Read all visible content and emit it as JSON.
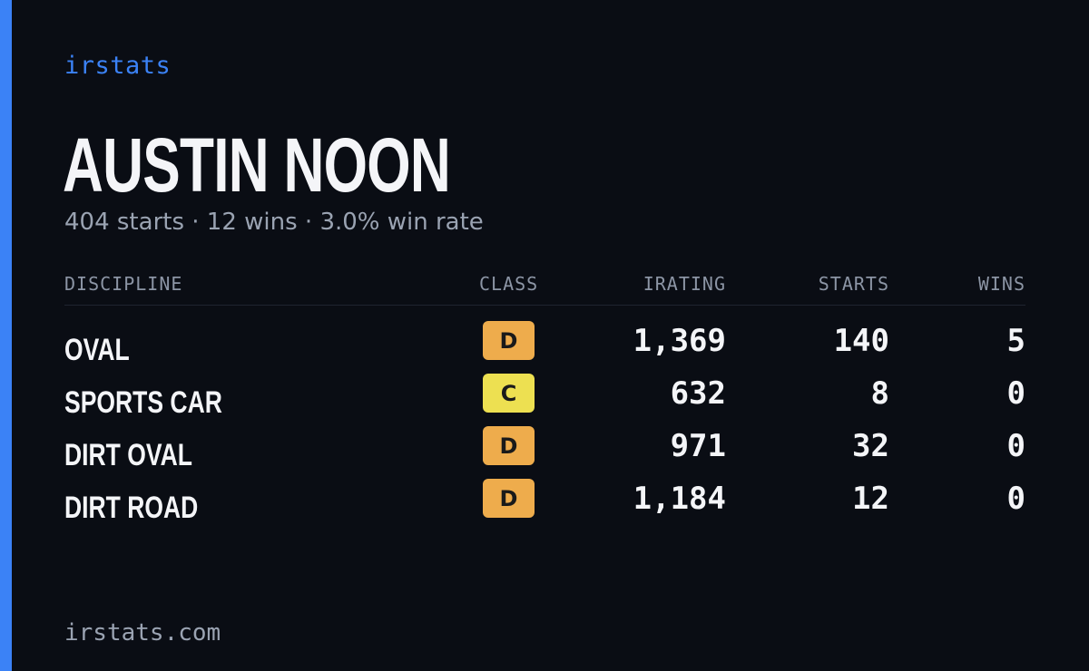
{
  "brand": "irstats",
  "driver_name": "AUSTIN NOON",
  "summary": "404 starts · 12 wins · 3.0% win rate",
  "table": {
    "headers": {
      "discipline": "DISCIPLINE",
      "class": "CLASS",
      "irating": "IRATING",
      "starts": "STARTS",
      "wins": "WINS"
    },
    "rows": [
      {
        "discipline": "OVAL",
        "class": "D",
        "class_color": "#eeac4c",
        "irating": "1,369",
        "starts": "140",
        "wins": "5"
      },
      {
        "discipline": "SPORTS CAR",
        "class": "C",
        "class_color": "#ede051",
        "irating": "632",
        "starts": "8",
        "wins": "0"
      },
      {
        "discipline": "DIRT OVAL",
        "class": "D",
        "class_color": "#eeac4c",
        "irating": "971",
        "starts": "32",
        "wins": "0"
      },
      {
        "discipline": "DIRT ROAD",
        "class": "D",
        "class_color": "#eeac4c",
        "irating": "1,184",
        "starts": "12",
        "wins": "0"
      }
    ]
  },
  "footer": "irstats.com",
  "colors": {
    "accent": "#3b82f6",
    "background": "#0a0d14"
  }
}
